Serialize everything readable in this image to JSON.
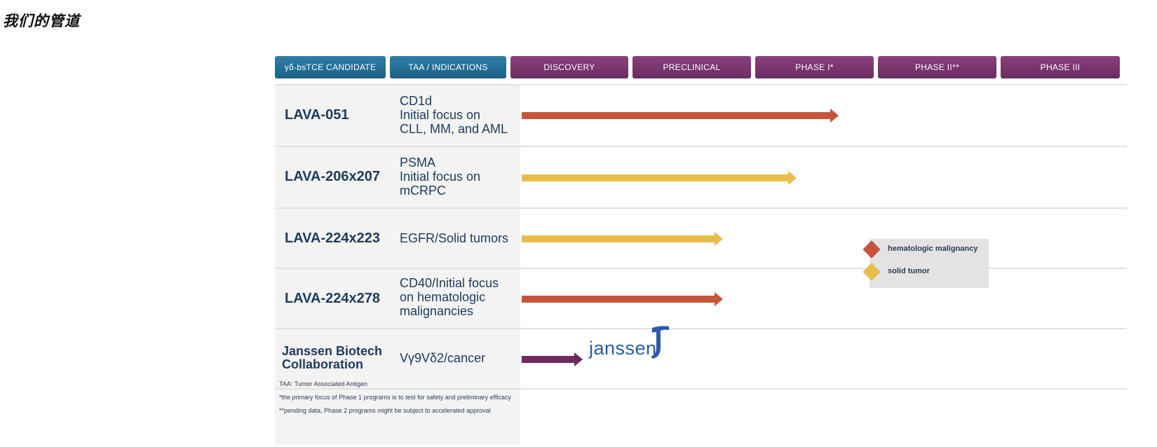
{
  "page": {
    "title": "我们的管道"
  },
  "pipeline": {
    "headers": {
      "candidate": "γδ-bsTCE CANDIDATE",
      "indications": "TAA / INDICATIONS",
      "discovery": "DISCOVERY",
      "preclinical": "PRECLINICAL",
      "phase1": "PHASE I*",
      "phase2": "PHASE II**",
      "phase3": "PHASE III"
    },
    "colors": {
      "header_blue": "#1d5f85",
      "header_purple": "#6a2d5f",
      "hematologic": "#c4553a",
      "solid": "#e9bd4c",
      "collaboration": "#6e2a5a"
    },
    "rows": [
      {
        "candidate": "LAVA-051",
        "indication": "CD1d\nInitial focus on\nCLL, MM, and AML",
        "type": "hematologic",
        "progress": 0.52
      },
      {
        "candidate": "LAVA-206x207",
        "indication": "PSMA\nInitial focus on\nmCRPC",
        "type": "solid",
        "progress": 0.45
      },
      {
        "candidate": "LAVA-224x223",
        "indication": "EGFR/Solid tumors",
        "type": "solid",
        "progress": 0.33
      },
      {
        "candidate": "LAVA-224x278",
        "indication": "CD40/Initial focus\non hematologic\nmalignancies",
        "type": "hematologic",
        "progress": 0.33
      },
      {
        "candidate": "Janssen Biotech\nCollaboration",
        "indication": "Vγ9Vδ2/cancer",
        "type": "collaboration",
        "progress": 0.1
      }
    ],
    "partner_logo": "janssen",
    "legend": [
      {
        "label": "hematologic malignancy",
        "color": "#c4553a"
      },
      {
        "label": "solid tumor",
        "color": "#e9bd4c"
      }
    ],
    "footnotes": [
      "TAA: Tumor Associated Antigen",
      "*the primary focus of Phase 1 programs is to test for safety and preliminary efficacy",
      "**pending data, Phase 2 programs might be subject to accelerated approval"
    ]
  }
}
